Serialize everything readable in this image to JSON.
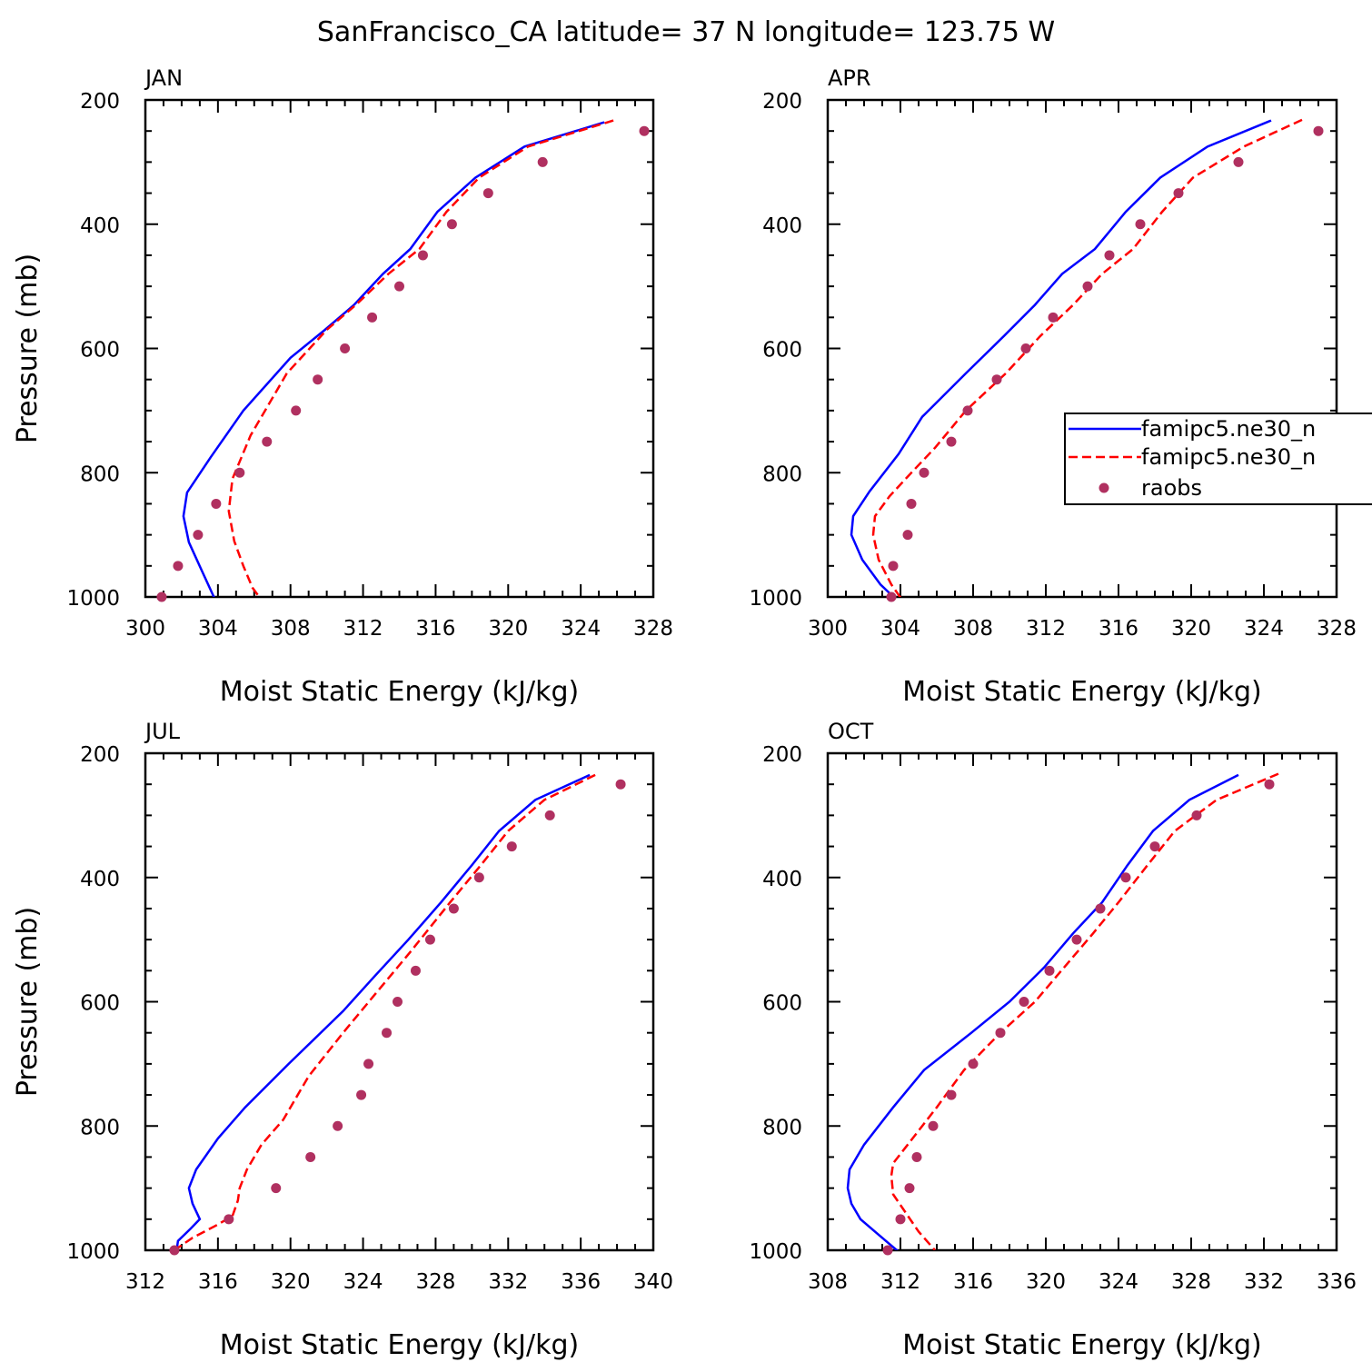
{
  "title": "SanFrancisco_CA  latitude= 37 N longitude= 123.75 W",
  "colors": {
    "model1": "#0000ff",
    "model2": "#ff0000",
    "raobs": "#b03060",
    "axes": "#000000"
  },
  "legend": {
    "placement": "right-middle of APR panel, clipped at figure edge",
    "entries": [
      {
        "label": "famipc5.ne30_n",
        "style": "solid-line",
        "color": "#0000ff"
      },
      {
        "label": "famipc5.ne30_n",
        "style": "dashed-line",
        "color": "#ff0000"
      },
      {
        "label": "raobs",
        "style": "marker",
        "color": "#b03060"
      }
    ]
  },
  "chart_data": [
    {
      "type": "line",
      "panel": "JAN",
      "xlabel": "Moist Static Energy (kJ/kg)",
      "ylabel": "Pressure (mb)",
      "xlim": [
        300,
        328
      ],
      "ylim": [
        1000,
        200
      ],
      "xticks": [
        300,
        304,
        308,
        312,
        316,
        320,
        324,
        328
      ],
      "yticks": [
        200,
        400,
        600,
        800,
        1000
      ],
      "series": [
        {
          "name": "famipc5.ne30_n",
          "style": "solid",
          "color": "#0000ff",
          "x": [
            325.3,
            320.9,
            318.2,
            316.1,
            314.6,
            313.1,
            311.5,
            309.9,
            308.0,
            305.4,
            303.6,
            302.3,
            302.1,
            302.4,
            303.1,
            303.9
          ],
          "y": [
            236,
            275,
            325,
            380,
            440,
            480,
            530,
            570,
            615,
            700,
            775,
            832,
            870,
            912,
            957,
            1008
          ]
        },
        {
          "name": "famipc5.ne30_n",
          "style": "dashed",
          "color": "#ff0000",
          "x": [
            325.8,
            321.1,
            318.4,
            316.6,
            315.1,
            313.4,
            311.6,
            310.0,
            307.8,
            305.8,
            304.8,
            304.6,
            304.9,
            305.4,
            305.9,
            306.4
          ],
          "y": [
            233,
            275,
            325,
            380,
            440,
            480,
            530,
            570,
            640,
            740,
            810,
            862,
            910,
            950,
            985,
            1005
          ]
        },
        {
          "name": "raobs",
          "style": "marker",
          "color": "#b03060",
          "x": [
            327.5,
            321.9,
            318.9,
            316.9,
            315.3,
            314.0,
            312.5,
            311.0,
            309.5,
            308.3,
            306.7,
            305.2,
            303.9,
            302.9,
            301.8,
            300.9
          ],
          "y": [
            250,
            300,
            350,
            400,
            450,
            500,
            550,
            600,
            650,
            700,
            750,
            800,
            850,
            900,
            950,
            1000
          ]
        }
      ]
    },
    {
      "type": "line",
      "panel": "APR",
      "xlabel": "Moist Static Energy (kJ/kg)",
      "ylabel": "",
      "xlim": [
        300,
        328
      ],
      "ylim": [
        1000,
        200
      ],
      "xticks": [
        300,
        304,
        308,
        312,
        316,
        320,
        324,
        328
      ],
      "yticks": [
        200,
        400,
        600,
        800,
        1000
      ],
      "series": [
        {
          "name": "famipc5.ne30_n",
          "style": "solid",
          "color": "#0000ff",
          "x": [
            324.4,
            320.9,
            318.3,
            316.4,
            314.7,
            312.9,
            311.4,
            309.7,
            307.6,
            305.2,
            303.9,
            302.3,
            301.4,
            301.3,
            301.9,
            302.9,
            303.8
          ],
          "y": [
            233,
            275,
            325,
            380,
            440,
            480,
            530,
            580,
            640,
            710,
            770,
            830,
            870,
            900,
            940,
            980,
            1005
          ]
        },
        {
          "name": "famipc5.ne30_n",
          "style": "dashed",
          "color": "#ff0000",
          "x": [
            326.1,
            322.9,
            320.1,
            318.4,
            316.8,
            315.1,
            313.5,
            311.7,
            309.8,
            307.6,
            305.9,
            304.6,
            303.4,
            302.6,
            302.5,
            302.8,
            303.5,
            304.1
          ],
          "y": [
            232,
            275,
            325,
            380,
            440,
            480,
            530,
            580,
            640,
            700,
            760,
            800,
            838,
            870,
            900,
            940,
            980,
            1005
          ]
        },
        {
          "name": "raobs",
          "style": "marker",
          "color": "#b03060",
          "x": [
            327.0,
            322.6,
            319.3,
            317.2,
            315.5,
            314.3,
            312.4,
            310.9,
            309.3,
            307.7,
            306.8,
            305.3,
            304.6,
            304.4,
            303.6,
            303.5
          ],
          "y": [
            250,
            300,
            350,
            400,
            450,
            500,
            550,
            600,
            650,
            700,
            750,
            800,
            850,
            900,
            950,
            1000
          ]
        }
      ]
    },
    {
      "type": "line",
      "panel": "JUL",
      "xlabel": "Moist Static Energy (kJ/kg)",
      "ylabel": "Pressure (mb)",
      "xlim": [
        312,
        340
      ],
      "ylim": [
        1000,
        200
      ],
      "xticks": [
        312,
        316,
        320,
        324,
        328,
        332,
        336,
        340
      ],
      "yticks": [
        200,
        400,
        600,
        800,
        1000
      ],
      "series": [
        {
          "name": "famipc5.ne30_n",
          "style": "solid",
          "color": "#0000ff",
          "x": [
            336.5,
            333.5,
            331.5,
            330.0,
            328.3,
            326.5,
            324.6,
            322.9,
            319.9,
            317.5,
            316.0,
            314.8,
            314.4,
            314.6,
            315.0,
            314.5,
            313.8,
            313.7
          ],
          "y": [
            235,
            275,
            325,
            380,
            440,
            500,
            560,
            615,
            700,
            770,
            820,
            870,
            900,
            925,
            950,
            965,
            985,
            1005
          ]
        },
        {
          "name": "famipc5.ne30_n",
          "style": "dashed",
          "color": "#ff0000",
          "x": [
            336.8,
            334.0,
            332.0,
            330.5,
            328.8,
            326.6,
            324.6,
            322.9,
            321.0,
            319.6,
            318.4,
            317.6,
            317.2,
            317.1,
            316.8,
            315.9,
            314.6,
            313.6
          ],
          "y": [
            235,
            275,
            325,
            380,
            440,
            520,
            590,
            650,
            720,
            790,
            830,
            870,
            900,
            920,
            945,
            960,
            980,
            1000
          ]
        },
        {
          "name": "raobs",
          "style": "marker",
          "color": "#b03060",
          "x": [
            338.2,
            334.3,
            332.2,
            330.4,
            329.0,
            327.7,
            326.9,
            325.9,
            325.3,
            324.3,
            323.9,
            322.6,
            321.1,
            319.2,
            316.6,
            313.6
          ],
          "y": [
            250,
            300,
            350,
            400,
            450,
            500,
            550,
            600,
            650,
            700,
            750,
            800,
            850,
            900,
            950,
            1000
          ]
        }
      ]
    },
    {
      "type": "line",
      "panel": "OCT",
      "xlabel": "Moist Static Energy (kJ/kg)",
      "ylabel": "",
      "xlim": [
        308,
        336
      ],
      "ylim": [
        1000,
        200
      ],
      "xticks": [
        308,
        312,
        316,
        320,
        324,
        328,
        332,
        336
      ],
      "yticks": [
        200,
        400,
        600,
        800,
        1000
      ],
      "series": [
        {
          "name": "famipc5.ne30_n",
          "style": "solid",
          "color": "#0000ff",
          "x": [
            330.6,
            327.9,
            325.9,
            324.5,
            323.1,
            321.5,
            319.9,
            318.0,
            315.9,
            313.3,
            311.6,
            310.0,
            309.2,
            309.1,
            309.3,
            309.8,
            310.8,
            312.0
          ],
          "y": [
            235,
            275,
            325,
            380,
            440,
            490,
            545,
            600,
            650,
            710,
            770,
            830,
            870,
            900,
            925,
            950,
            975,
            1005
          ]
        },
        {
          "name": "famipc5.ne30_n",
          "style": "dashed",
          "color": "#ff0000",
          "x": [
            332.8,
            329.4,
            327.1,
            325.6,
            324.0,
            322.6,
            321.0,
            319.4,
            317.5,
            315.5,
            314.0,
            312.4,
            311.6,
            311.5,
            311.6,
            312.3,
            313.0,
            313.9
          ],
          "y": [
            233,
            275,
            325,
            380,
            440,
            490,
            545,
            600,
            650,
            710,
            770,
            830,
            860,
            880,
            910,
            940,
            970,
            1000
          ]
        },
        {
          "name": "raobs",
          "style": "marker",
          "color": "#b03060",
          "x": [
            332.3,
            328.3,
            326.0,
            324.4,
            323.0,
            321.7,
            320.2,
            318.8,
            317.5,
            316.0,
            314.8,
            313.8,
            312.9,
            312.5,
            312.0,
            311.3
          ],
          "y": [
            250,
            300,
            350,
            400,
            450,
            500,
            550,
            600,
            650,
            700,
            750,
            800,
            850,
            900,
            950,
            1000
          ]
        }
      ]
    }
  ]
}
